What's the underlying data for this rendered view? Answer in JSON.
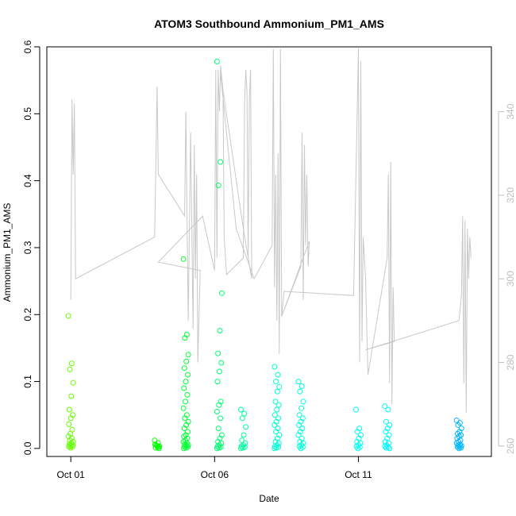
{
  "chart_data": {
    "type": "scatter",
    "title": "ATOM3 Southbound Ammonium_PM1_AMS",
    "xlabel": "Date",
    "ylabel": "Ammonium_PM1_AMS",
    "x_is_date": true,
    "xlim": [
      "2017-09-30T04:00",
      "2017-10-15T15:00"
    ],
    "ylim": [
      -0.012,
      0.6
    ],
    "y_ticks": [
      0.0,
      0.1,
      0.2,
      0.3,
      0.4,
      0.5,
      0.6
    ],
    "x_ticks": [
      {
        "label": "Oct 01",
        "value": "2017-10-01"
      },
      {
        "label": "Oct 06",
        "value": "2017-10-06"
      },
      {
        "label": "Oct 11",
        "value": "2017-10-11"
      }
    ],
    "y2_ticks": [
      260,
      280,
      300,
      320,
      340
    ],
    "y2_lim": [
      257.5,
      355.5
    ],
    "grid": false,
    "legend": "none",
    "colors": {
      "axis": "#000000",
      "secondary_axis": "#bebebe",
      "line": "#c8c8c8",
      "points_gradient": [
        "#7fff00",
        "#00ff00",
        "#00ffcc",
        "#00ffff",
        "#0099ff"
      ]
    },
    "scatter_series": [
      {
        "x": "2017-10-01T00:00",
        "y": [
          0.198,
          0.127,
          0.118,
          0.098,
          0.078,
          0.058,
          0.05,
          0.045,
          0.036,
          0.028,
          0.022,
          0.018,
          0.015,
          0.012,
          0.01,
          0.008,
          0.006,
          0.005,
          0.004,
          0.003,
          0.002,
          0.001
        ]
      },
      {
        "x": "2017-10-04T00:00",
        "y": [
          0.012,
          0.008,
          0.005,
          0.003,
          0.002,
          0.001,
          0.0,
          0.004,
          0.006,
          0.002
        ]
      },
      {
        "x": "2017-10-05T00:00",
        "y": [
          0.283,
          0.17,
          0.165,
          0.14,
          0.13,
          0.12,
          0.11,
          0.1,
          0.09,
          0.08,
          0.07,
          0.06,
          0.05,
          0.045,
          0.04,
          0.035,
          0.03,
          0.025,
          0.02,
          0.018,
          0.015,
          0.012,
          0.01,
          0.008,
          0.006,
          0.005,
          0.004,
          0.003,
          0.002,
          0.001,
          0.0
        ]
      },
      {
        "x": "2017-10-06T04:00",
        "y": [
          0.578,
          0.428,
          0.393,
          0.232,
          0.176,
          0.142,
          0.128,
          0.115,
          0.1,
          0.07,
          0.065,
          0.055,
          0.045,
          0.03,
          0.02,
          0.015,
          0.01,
          0.008,
          0.005,
          0.003,
          0.002,
          0.001,
          0.0
        ]
      },
      {
        "x": "2017-10-07T00:00",
        "y": [
          0.058,
          0.052,
          0.045,
          0.032,
          0.02,
          0.012,
          0.008,
          0.005,
          0.003,
          0.002,
          0.001,
          0.0
        ]
      },
      {
        "x": "2017-10-08T04:00",
        "y": [
          0.122,
          0.11,
          0.1,
          0.092,
          0.085,
          0.07,
          0.065,
          0.058,
          0.05,
          0.045,
          0.04,
          0.035,
          0.03,
          0.025,
          0.02,
          0.015,
          0.01,
          0.008,
          0.005,
          0.003,
          0.002,
          0.001,
          0.0
        ]
      },
      {
        "x": "2017-10-09T00:00",
        "y": [
          0.1,
          0.093,
          0.085,
          0.07,
          0.06,
          0.05,
          0.045,
          0.04,
          0.035,
          0.03,
          0.025,
          0.02,
          0.015,
          0.01,
          0.008,
          0.005,
          0.003,
          0.002,
          0.0
        ]
      },
      {
        "x": "2017-10-11T00:00",
        "y": [
          0.058,
          0.03,
          0.025,
          0.02,
          0.015,
          0.01,
          0.008,
          0.005,
          0.003,
          0.002,
          0.0
        ]
      },
      {
        "x": "2017-10-12T00:00",
        "y": [
          0.063,
          0.058,
          0.04,
          0.035,
          0.03,
          0.025,
          0.02,
          0.015,
          0.01,
          0.008,
          0.005,
          0.003,
          0.002,
          0.001,
          0.0
        ]
      },
      {
        "x": "2017-10-14T12:00",
        "y": [
          0.042,
          0.038,
          0.035,
          0.03,
          0.025,
          0.022,
          0.02,
          0.018,
          0.015,
          0.012,
          0.01,
          0.008,
          0.006,
          0.005,
          0.004,
          0.003,
          0.002,
          0.001,
          0.0
        ]
      }
    ],
    "line_series": {
      "axis": "secondary",
      "points": [
        [
          "2017-10-01T00:00",
          295
        ],
        [
          "2017-10-01T01:00",
          343
        ],
        [
          "2017-10-01T02:00",
          325
        ],
        [
          "2017-10-01T03:00",
          342
        ],
        [
          "2017-10-01T04:00",
          300
        ],
        [
          "2017-10-03T22:00",
          310
        ],
        [
          "2017-10-04T00:00",
          346
        ],
        [
          "2017-10-04T01:00",
          325
        ],
        [
          "2017-10-04T23:00",
          315
        ],
        [
          "2017-10-05T00:00",
          340
        ],
        [
          "2017-10-05T02:00",
          290
        ],
        [
          "2017-10-05T04:00",
          335
        ],
        [
          "2017-10-05T06:00",
          288
        ],
        [
          "2017-10-05T07:00",
          332
        ],
        [
          "2017-10-05T08:00",
          300
        ],
        [
          "2017-10-05T09:00",
          325
        ],
        [
          "2017-10-05T10:00",
          280
        ],
        [
          "2017-10-05T12:00",
          302
        ],
        [
          "2017-10-04T01:00",
          304
        ],
        [
          "2017-10-05T14:00",
          315
        ],
        [
          "2017-10-06T00:00",
          302
        ],
        [
          "2017-10-06T01:00",
          350
        ],
        [
          "2017-10-06T02:00",
          305
        ],
        [
          "2017-10-06T03:00",
          350
        ],
        [
          "2017-10-06T04:00",
          340
        ],
        [
          "2017-10-06T05:00",
          351
        ],
        [
          "2017-10-06T07:00",
          345
        ],
        [
          "2017-10-06T08:00",
          310
        ],
        [
          "2017-10-06T10:00",
          301
        ],
        [
          "2017-10-07T00:00",
          305
        ],
        [
          "2017-10-07T01:00",
          342
        ],
        [
          "2017-10-07T02:00",
          350
        ],
        [
          "2017-10-07T03:00",
          345
        ],
        [
          "2017-10-07T04:00",
          305
        ],
        [
          "2017-10-07T05:00",
          343
        ],
        [
          "2017-10-07T06:00",
          350
        ],
        [
          "2017-10-07T07:00",
          300
        ],
        [
          "2017-10-07T00:00",
          312
        ],
        [
          "2017-10-06T05:00",
          349
        ],
        [
          "2017-10-06T18:00",
          312
        ],
        [
          "2017-10-07T09:00",
          300
        ],
        [
          "2017-10-08T00:00",
          308
        ],
        [
          "2017-10-08T01:00",
          355
        ],
        [
          "2017-10-08T02:00",
          298
        ],
        [
          "2017-10-08T03:00",
          325
        ],
        [
          "2017-10-08T04:00",
          290
        ],
        [
          "2017-10-08T05:00",
          330
        ],
        [
          "2017-10-08T06:00",
          282
        ],
        [
          "2017-10-08T07:00",
          355
        ],
        [
          "2017-10-08T08:00",
          291
        ],
        [
          "2017-10-09T00:00",
          303
        ],
        [
          "2017-10-09T01:00",
          335
        ],
        [
          "2017-10-09T02:00",
          295
        ],
        [
          "2017-10-09T03:00",
          332
        ],
        [
          "2017-10-09T04:00",
          308
        ],
        [
          "2017-10-09T05:00",
          325
        ],
        [
          "2017-10-09T06:00",
          303
        ],
        [
          "2017-10-09T07:00",
          309
        ],
        [
          "2017-10-08T08:00",
          291
        ],
        [
          "2017-10-08T10:00",
          297
        ],
        [
          "2017-10-10T20:00",
          296
        ],
        [
          "2017-10-11T00:00",
          355
        ],
        [
          "2017-10-11T01:00",
          280
        ],
        [
          "2017-10-11T02:00",
          352
        ],
        [
          "2017-10-11T03:00",
          285
        ],
        [
          "2017-10-11T04:00",
          310
        ],
        [
          "2017-10-11T06:00",
          300
        ],
        [
          "2017-10-11T08:00",
          277
        ],
        [
          "2017-10-12T00:00",
          305
        ],
        [
          "2017-10-12T01:00",
          325
        ],
        [
          "2017-10-12T02:00",
          275
        ],
        [
          "2017-10-12T03:00",
          328
        ],
        [
          "2017-10-12T04:00",
          270
        ],
        [
          "2017-10-12T05:00",
          298
        ],
        [
          "2017-10-12T06:00",
          285
        ],
        [
          "2017-10-11T06:00",
          283
        ],
        [
          "2017-10-14T12:00",
          290
        ],
        [
          "2017-10-14T14:00",
          296
        ],
        [
          "2017-10-14T15:00",
          315
        ],
        [
          "2017-10-14T16:00",
          275
        ],
        [
          "2017-10-14T17:00",
          314
        ],
        [
          "2017-10-14T18:00",
          268
        ],
        [
          "2017-10-14T19:00",
          312
        ],
        [
          "2017-10-14T20:00",
          300
        ],
        [
          "2017-10-14T21:00",
          310
        ],
        [
          "2017-10-14T22:00",
          305
        ]
      ]
    }
  }
}
